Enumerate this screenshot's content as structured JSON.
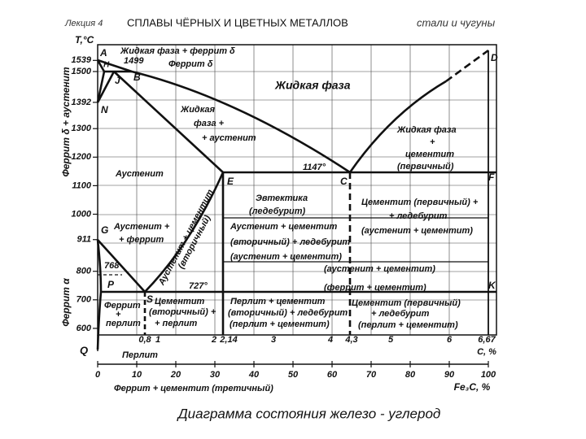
{
  "header": {
    "lecture": "Лекция 4",
    "title": "СПЛАВЫ ЧЁРНЫХ И ЦВЕТНЫХ МЕТАЛЛОВ",
    "subtitle": "стали и чугуны"
  },
  "diagram": {
    "axis_title": "T,°C",
    "temperature_ticks": [
      1539,
      1500,
      1392,
      1300,
      1200,
      1100,
      1000,
      911,
      800,
      700,
      600
    ],
    "side_labels": [
      "Феррит δ + аустенит",
      "Феррит α"
    ],
    "carbon_ticks": [
      "0,8",
      "1",
      "2",
      "2,14",
      "3",
      "4",
      "4,3",
      "5",
      "6",
      "6,67"
    ],
    "carbon_axis": "C, %",
    "fe3c_ticks": [
      0,
      10,
      20,
      30,
      40,
      50,
      60,
      70,
      80,
      90,
      100
    ],
    "fe3c_axis": "Fe₃C, %",
    "points": [
      "A",
      "H",
      "J",
      "B",
      "N",
      "D",
      "E",
      "C",
      "F",
      "G",
      "P",
      "S",
      "K",
      "Q"
    ],
    "temperatures": [
      "1499",
      "1147°",
      "768",
      "727°"
    ],
    "regions": [
      [
        "Жидкая фаза + феррит δ"
      ],
      [
        "Феррит δ"
      ],
      [
        "Жидкая фаза"
      ],
      [
        "Жидкая",
        "фаза +",
        "+ аустенит"
      ],
      [
        "Жидкая фаза",
        "+",
        "цементит",
        "(первичный)"
      ],
      [
        "Аустенит"
      ],
      [
        "Эвтектика",
        "(ледебурит)"
      ],
      [
        "Цементит (первичный) +",
        "+ ледебурит",
        "(аустенит + цементит)"
      ],
      [
        "Аустенит +",
        "+ феррит"
      ],
      [
        "Аустенит + цементит",
        "(вторичный)"
      ],
      [
        "Аустенит + цементит",
        "(вторичный) + ледебурит",
        "(аустенит + цементит)"
      ],
      [
        "(аустенит + цементит)"
      ],
      [
        "(феррит + цементит)"
      ],
      [
        "Феррит",
        "+",
        "перлит"
      ],
      [
        "Цементит",
        "(вторичный) +",
        "+ перлит"
      ],
      [
        "Перлит + цементит",
        "(вторичный) + ледебурит",
        "(перлит + цементит)"
      ],
      [
        "Цементит (первичный)",
        "+ ледебурит",
        "(перлит + цементит)"
      ],
      [
        "Перлит"
      ],
      [
        "Феррит + цементит (третичный)"
      ]
    ]
  },
  "caption": "Диаграмма состояния железо - углерод"
}
